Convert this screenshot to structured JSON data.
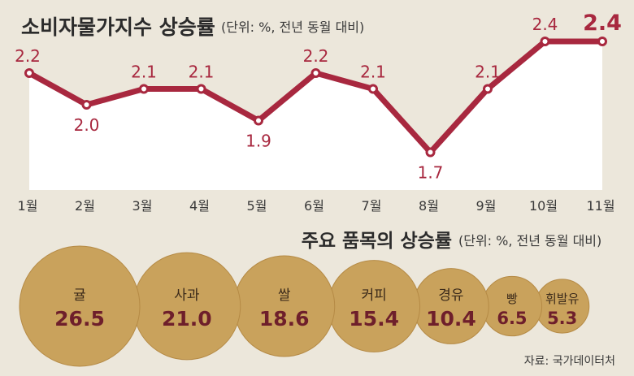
{
  "chart_data": [
    {
      "type": "line",
      "title": "소비자물가지수 상승률",
      "subtitle": "(단위: %, 전년 동월 대비)",
      "categories": [
        "1월",
        "2월",
        "3월",
        "4월",
        "5월",
        "6월",
        "7월",
        "8월",
        "9월",
        "10월",
        "11월"
      ],
      "values": [
        2.2,
        2.0,
        2.1,
        2.1,
        1.9,
        2.2,
        2.1,
        1.7,
        2.1,
        2.4,
        2.4
      ],
      "value_labels": [
        "2.2",
        "2.0",
        "2.1",
        "2.1",
        "1.9",
        "2.2",
        "2.1",
        "1.7",
        "2.1",
        "2.4",
        "2.4"
      ],
      "line_color": "#a8283f",
      "area_color": "#ffffff",
      "xlabel": "",
      "ylabel": ""
    },
    {
      "type": "bubble",
      "title": "주요 품목의 상승률",
      "subtitle": "(단위: %, 전년 동월 대비)",
      "categories": [
        "귤",
        "사과",
        "쌀",
        "커피",
        "경유",
        "빵",
        "휘발유"
      ],
      "values": [
        26.5,
        21.0,
        18.6,
        15.4,
        10.4,
        6.5,
        5.3
      ],
      "value_labels": [
        "26.5",
        "21.0",
        "18.6",
        "15.4",
        "10.4",
        "6.5",
        "5.3"
      ],
      "bubble_color": "#c9a25c",
      "value_color": "#6e1f2b"
    }
  ],
  "source": "자료: 국가데이터처"
}
